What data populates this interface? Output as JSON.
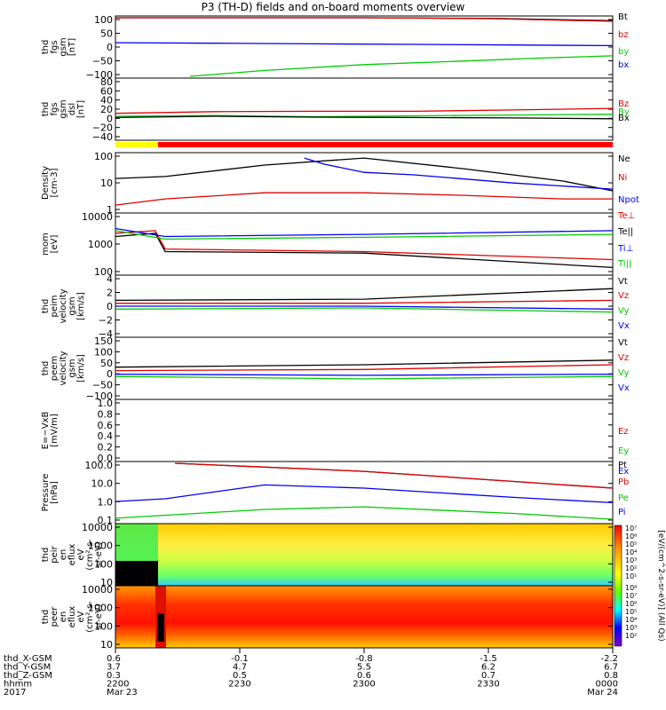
{
  "title": "P3 (TH-D) fields and on-board moments overview",
  "chart_data": [
    {
      "type": "line",
      "ylabel": "thd fgs gsm [nT]",
      "ylim": [
        -100,
        100
      ],
      "y_ticks": [
        "100",
        "50",
        "0",
        "−50",
        "−100"
      ],
      "series": [
        {
          "name": "Bt",
          "color": "#000000",
          "x": [
            0,
            0.25,
            0.5,
            0.75,
            1
          ],
          "values": [
            100,
            100,
            100,
            98,
            90
          ]
        },
        {
          "name": "bz",
          "color": "#e00000",
          "x": [
            0,
            0.25,
            0.5,
            0.75,
            1
          ],
          "values": [
            100,
            100,
            100,
            97,
            88
          ]
        },
        {
          "name": "by",
          "color": "#00cc00",
          "x": [
            0.15,
            0.3,
            0.5,
            0.7,
            0.85,
            1
          ],
          "values": [
            -100,
            -80,
            -60,
            -48,
            -38,
            -30
          ]
        },
        {
          "name": "bx",
          "color": "#0000ee",
          "x": [
            0,
            0.2,
            0.4,
            0.6,
            0.8,
            1
          ],
          "values": [
            15,
            13,
            11,
            9,
            7,
            5
          ]
        }
      ]
    },
    {
      "type": "line",
      "ylabel": "thd fgs gsm dsl [nT]",
      "ylim": [
        -50,
        90
      ],
      "y_ticks": [
        "80",
        "60",
        "40",
        "20",
        "0",
        "−20",
        "−40"
      ],
      "series": [
        {
          "name": "Bz",
          "color": "#e00000",
          "x": [
            0,
            0.2,
            0.4,
            0.6,
            0.8,
            1
          ],
          "values": [
            10,
            14,
            15,
            15,
            18,
            22
          ]
        },
        {
          "name": "By",
          "color": "#00cc00",
          "x": [
            0,
            0.2,
            0.4,
            0.6,
            0.8,
            1
          ],
          "values": [
            3,
            5,
            2,
            4,
            6,
            8
          ]
        },
        {
          "name": "Bx",
          "color": "#000000",
          "x": [
            0,
            0.2,
            0.4,
            0.6,
            0.8,
            1
          ],
          "values": [
            0,
            3,
            1,
            0,
            -1,
            -3
          ]
        }
      ]
    },
    {
      "type": "line",
      "ylabel": "Density [cm-3]",
      "scale": "log",
      "ylim": [
        0.5,
        300
      ],
      "y_ticks": [
        "100",
        "10",
        "1"
      ],
      "series": [
        {
          "name": "Ne",
          "color": "#000000",
          "x": [
            0,
            0.1,
            0.3,
            0.5,
            0.7,
            0.9,
            1
          ],
          "values": [
            20,
            25,
            90,
            200,
            60,
            15,
            5
          ]
        },
        {
          "name": "Ni",
          "color": "#e00000",
          "x": [
            0,
            0.1,
            0.3,
            0.5,
            0.7,
            0.9,
            1
          ],
          "values": [
            1,
            2,
            4,
            4,
            3,
            2,
            2
          ]
        },
        {
          "name": "Npot",
          "color": "#0000ee",
          "x": [
            0.38,
            0.42,
            0.5,
            0.6,
            0.8,
            1
          ],
          "values": [
            200,
            100,
            40,
            30,
            12,
            6
          ]
        }
      ]
    },
    {
      "type": "line",
      "ylabel": "mom [eV]",
      "scale": "log",
      "ylim": [
        60,
        10000
      ],
      "y_ticks": [
        "10000",
        "1000",
        "100"
      ],
      "series": [
        {
          "name": "Te⊥",
          "color": "#e00000",
          "x": [
            0,
            0.08,
            0.1,
            0.5,
            1
          ],
          "values": [
            2000,
            2500,
            500,
            400,
            200
          ]
        },
        {
          "name": "Te||",
          "color": "#000000",
          "x": [
            0,
            0.08,
            0.1,
            0.5,
            1
          ],
          "values": [
            1500,
            2000,
            400,
            350,
            100
          ]
        },
        {
          "name": "Ti⊥",
          "color": "#0000ee",
          "x": [
            0,
            0.1,
            0.5,
            1
          ],
          "values": [
            3000,
            1500,
            1800,
            2500
          ]
        },
        {
          "name": "Ti||",
          "color": "#00cc00",
          "x": [
            0,
            0.1,
            0.5,
            1
          ],
          "values": [
            2500,
            1200,
            1400,
            1800
          ]
        }
      ]
    },
    {
      "type": "line",
      "ylabel": "thd peim velocity gsm [km/s]",
      "ylim": [
        -5,
        5
      ],
      "y_ticks": [
        "4",
        "2",
        "0",
        "−2",
        "−4"
      ],
      "series": [
        {
          "name": "Vt",
          "color": "#000000",
          "x": [
            0,
            0.5,
            1
          ],
          "values": [
            1,
            1.2,
            3
          ]
        },
        {
          "name": "Vz",
          "color": "#e00000",
          "x": [
            0,
            0.5,
            1
          ],
          "values": [
            0.5,
            0.5,
            1
          ]
        },
        {
          "name": "Vy",
          "color": "#00cc00",
          "x": [
            0,
            0.5,
            1
          ],
          "values": [
            -0.5,
            -0.3,
            -1
          ]
        },
        {
          "name": "Vx",
          "color": "#0000ee",
          "x": [
            0,
            0.5,
            1
          ],
          "values": [
            0,
            0,
            -0.5
          ]
        }
      ]
    },
    {
      "type": "line",
      "ylabel": "thd peem velocity gsm [km/s]",
      "ylim": [
        -100,
        150
      ],
      "y_ticks": [
        "150",
        "100",
        "50",
        "0",
        "−50",
        "−100"
      ],
      "series": [
        {
          "name": "Vt",
          "color": "#000000",
          "x": [
            0,
            0.5,
            1
          ],
          "values": [
            30,
            40,
            60
          ]
        },
        {
          "name": "Vz",
          "color": "#e00000",
          "x": [
            0,
            0.5,
            1
          ],
          "values": [
            15,
            20,
            40
          ]
        },
        {
          "name": "Vy",
          "color": "#00cc00",
          "x": [
            0,
            0.5,
            1
          ],
          "values": [
            -10,
            -20,
            -10
          ]
        },
        {
          "name": "Vx",
          "color": "#0000ee",
          "x": [
            0,
            0.5,
            1
          ],
          "values": [
            0,
            -5,
            0
          ]
        }
      ]
    },
    {
      "type": "line",
      "ylabel": "E=−VxB [mV/m]",
      "ylim": [
        0,
        1
      ],
      "y_ticks": [
        "1.0",
        "0.8",
        "0.6",
        "0.4",
        "0.2",
        "0.0"
      ],
      "series": [
        {
          "name": "Ez",
          "color": "#e00000",
          "x": [],
          "values": []
        },
        {
          "name": "Ey",
          "color": "#00cc00",
          "x": [],
          "values": []
        },
        {
          "name": "Ex",
          "color": "#0000ee",
          "x": [],
          "values": []
        }
      ]
    },
    {
      "type": "line",
      "ylabel": "Pressure [nPa]",
      "scale": "log",
      "ylim": [
        0.05,
        100
      ],
      "y_ticks": [
        "100.0",
        "10.0",
        "1.0",
        "0.1"
      ],
      "series": [
        {
          "name": "Pt",
          "color": "#000000",
          "x": [
            0.12,
            0.5,
            1
          ],
          "values": [
            100,
            35,
            4
          ]
        },
        {
          "name": "Pb",
          "color": "#e00000",
          "x": [
            0.12,
            0.5,
            1
          ],
          "values": [
            100,
            35,
            4
          ]
        },
        {
          "name": "Pe",
          "color": "#00cc00",
          "x": [
            0,
            0.3,
            0.5,
            0.8,
            1
          ],
          "values": [
            0.08,
            0.25,
            0.35,
            0.15,
            0.07
          ]
        },
        {
          "name": "Pi",
          "color": "#0000ee",
          "x": [
            0,
            0.1,
            0.3,
            0.5,
            0.8,
            1
          ],
          "values": [
            0.7,
            1,
            6,
            4,
            1.2,
            0.6
          ]
        }
      ]
    },
    {
      "type": "heatmap",
      "ylabel": "thd peir en eflux eV (cm^2-s-sr-eV)",
      "y_ticks": [
        "10000",
        "1000",
        "100",
        "10"
      ]
    },
    {
      "type": "heatmap",
      "ylabel": "thd peer en eflux eV (cm^2-s-sr-eV)",
      "y_ticks": [
        "10000",
        "1000",
        "100",
        "10"
      ]
    }
  ],
  "colorbar": {
    "label": "[eV/(cm^2-s-sr-eV)] (All Qs)",
    "ticks": [
      "10⁷",
      "10⁶",
      "10⁵",
      "10⁴",
      "10³",
      "10²",
      "10¹"
    ],
    "ticks_lower": [
      "10⁸",
      "10⁷",
      "10⁶",
      "10⁵",
      "10⁴",
      "10³",
      "10²"
    ]
  },
  "x_axis": {
    "row_labels": [
      "thd_X-GSM",
      "thd_Y-GSM",
      "thd_Z-GSM",
      "hhmm",
      "2017"
    ],
    "ticks": [
      {
        "x": "0.6",
        "y": "3.7",
        "z": "0.3",
        "t": "2200",
        "d": "Mar 23"
      },
      {
        "x": "-0.1",
        "y": "4.7",
        "z": "0.5",
        "t": "2230",
        "d": ""
      },
      {
        "x": "-0.8",
        "y": "5.5",
        "z": "0.6",
        "t": "2300",
        "d": ""
      },
      {
        "x": "-1.5",
        "y": "6.2",
        "z": "0.7",
        "t": "2330",
        "d": ""
      },
      {
        "x": "-2.2",
        "y": "6.7",
        "z": "0.8",
        "t": "0000",
        "d": "Mar 24"
      }
    ]
  },
  "colors": {
    "bt": "#000000",
    "red": "#e00000",
    "green": "#00cc00",
    "blue": "#0000ee",
    "status_yellow": "#ffff00",
    "status_red": "#ff0000"
  }
}
